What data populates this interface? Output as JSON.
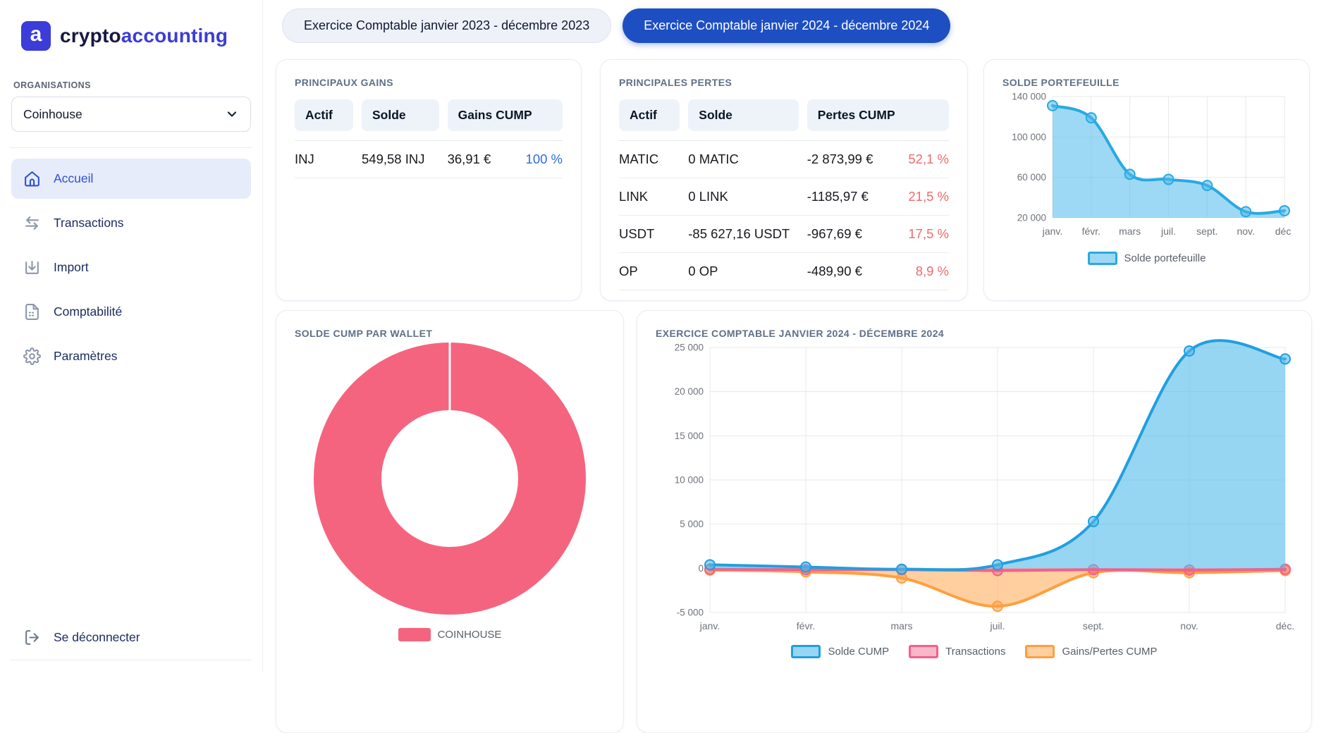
{
  "theme": {
    "accent_blue": "#1e4fc2",
    "logo_blue": "#3c3cd8",
    "logo_dark": "#181843",
    "nav_text": "#1c2a5e",
    "nav_active": "#2d51d4",
    "nav_active_bg": "#e7ecfa",
    "title_gray": "#5f7086",
    "pct_positive": "#2e6be6",
    "pct_negative": "#ed6a6f"
  },
  "brand": {
    "icon_letter": "a",
    "name_primary": "crypto",
    "name_secondary": "accounting"
  },
  "sidebar": {
    "organisations_label": "ORGANISATIONS",
    "organisation_selected": "Coinhouse",
    "items": [
      {
        "label": "Accueil",
        "icon": "home-icon",
        "active": true
      },
      {
        "label": "Transactions",
        "icon": "transfer-arrows-icon",
        "active": false
      },
      {
        "label": "Import",
        "icon": "import-download-icon",
        "active": false
      },
      {
        "label": "Comptabilité",
        "icon": "ledger-document-icon",
        "active": false
      },
      {
        "label": "Paramètres",
        "icon": "gear-icon",
        "active": false
      }
    ],
    "logout_label": "Se déconnecter"
  },
  "tabs": [
    {
      "label": "Exercice Comptable janvier 2023 - décembre 2023",
      "active": false
    },
    {
      "label": "Exercice Comptable janvier 2024 - décembre 2024",
      "active": true
    }
  ],
  "cards": {
    "gains": {
      "title": "PRINCIPAUX GAINS",
      "columns": [
        "Actif",
        "Solde",
        "Gains CUMP"
      ],
      "rows": [
        {
          "asset": "INJ",
          "balance": "549,58 INJ",
          "value": "36,91 €",
          "pct": "100 %"
        }
      ]
    },
    "pertes": {
      "title": "PRINCIPALES PERTES",
      "columns": [
        "Actif",
        "Solde",
        "Pertes CUMP"
      ],
      "rows": [
        {
          "asset": "MATIC",
          "balance": "0 MATIC",
          "value": "-2 873,99 €",
          "pct": "52,1 %"
        },
        {
          "asset": "LINK",
          "balance": "0 LINK",
          "value": "-1185,97 €",
          "pct": "21,5 %"
        },
        {
          "asset": "USDT",
          "balance": "-85 627,16 USDT",
          "value": "-967,69 €",
          "pct": "17,5 %"
        },
        {
          "asset": "OP",
          "balance": "0 OP",
          "value": "-489,90 €",
          "pct": "8,9 %"
        }
      ]
    },
    "portfolio": {
      "title": "SOLDE PORTEFEUILLE"
    },
    "wallet": {
      "title": "SOLDE CUMP PAR WALLET"
    },
    "exercice": {
      "title": "EXERCICE COMPTABLE JANVIER 2024 - DÉCEMBRE 2024"
    }
  },
  "chart_data": [
    {
      "type": "area",
      "title": "SOLDE PORTEFEUILLE",
      "categories": [
        "janv.",
        "févr.",
        "mars",
        "juil.",
        "sept.",
        "nov.",
        "déc."
      ],
      "series": [
        {
          "name": "Solde portefeuille",
          "values": [
            131000,
            119000,
            63000,
            58000,
            52000,
            26000,
            27000
          ],
          "color": "#29a9e1",
          "fill": "rgba(77,186,235,0.55)"
        }
      ],
      "ylim": [
        20000,
        140000
      ],
      "yticks": [
        20000,
        60000,
        100000,
        140000
      ],
      "grid": true,
      "legend_position": "bottom"
    },
    {
      "type": "pie",
      "donut": true,
      "title": "SOLDE CUMP PAR WALLET",
      "labels": [
        "COINHOUSE"
      ],
      "values": [
        100
      ],
      "colors": [
        "#f5647e"
      ],
      "legend_position": "bottom"
    },
    {
      "type": "area",
      "title": "EXERCICE COMPTABLE JANVIER 2024 - DÉCEMBRE 2024",
      "categories": [
        "janv.",
        "févr.",
        "mars",
        "juil.",
        "sept.",
        "nov.",
        "déc."
      ],
      "series": [
        {
          "name": "Solde CUMP",
          "values": [
            400,
            150,
            -100,
            400,
            5300,
            24600,
            23700
          ],
          "color": "#219fdf",
          "fill": "rgba(80,186,235,0.6)"
        },
        {
          "name": "Transactions",
          "values": [
            -100,
            -150,
            -150,
            -250,
            -150,
            -200,
            -100
          ],
          "color": "#f4608a",
          "fill": "rgba(244,96,138,0.45)"
        },
        {
          "name": "Gains/Pertes CUMP",
          "values": [
            -200,
            -400,
            -1100,
            -4300,
            -500,
            -500,
            -250
          ],
          "color": "#ff9f40",
          "fill": "rgba(255,159,64,0.5)"
        }
      ],
      "ylim": [
        -5000,
        25000
      ],
      "yticks": [
        -5000,
        0,
        5000,
        10000,
        15000,
        20000,
        25000
      ],
      "grid": true,
      "legend_position": "bottom"
    }
  ]
}
